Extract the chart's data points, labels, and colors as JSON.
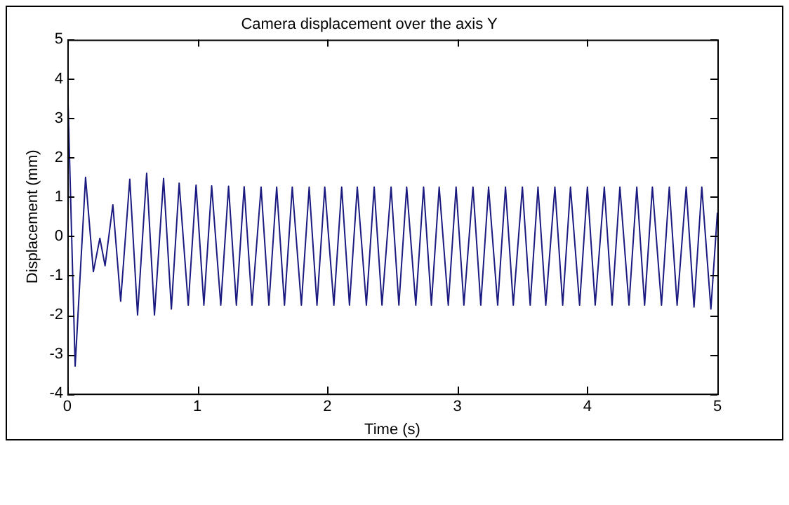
{
  "chart_data": {
    "type": "line",
    "title": "Camera displacement over the axis Y",
    "xlabel": "Time (s)",
    "ylabel": "Displacement (mm)",
    "xlim": [
      0,
      5
    ],
    "ylim": [
      -4,
      5
    ],
    "xticks": [
      0,
      1,
      2,
      3,
      4,
      5
    ],
    "yticks": [
      -4,
      -3,
      -2,
      -1,
      0,
      1,
      2,
      3,
      4,
      5
    ],
    "grid": false,
    "legend": false,
    "marker": "none",
    "line_style": "solid",
    "series": [
      {
        "color": "#1a1a80",
        "x": [
          0,
          0.06,
          0.14,
          0.2,
          0.25,
          0.29,
          0.35,
          0.41,
          0.48,
          0.54,
          0.61,
          0.67,
          0.74,
          0.8,
          0.86,
          0.93,
          0.99,
          1.05,
          1.11,
          1.18,
          1.24,
          1.3,
          1.36,
          1.42,
          1.49,
          1.55,
          1.61,
          1.67,
          1.73,
          1.8,
          1.86,
          1.92,
          1.98,
          2.05,
          2.11,
          2.17,
          2.23,
          2.3,
          2.36,
          2.42,
          2.49,
          2.55,
          2.61,
          2.68,
          2.74,
          2.8,
          2.86,
          2.93,
          2.99,
          3.05,
          3.12,
          3.18,
          3.24,
          3.31,
          3.37,
          3.43,
          3.5,
          3.56,
          3.62,
          3.68,
          3.75,
          3.81,
          3.87,
          3.94,
          4,
          4.06,
          4.13,
          4.19,
          4.25,
          4.32,
          4.38,
          4.44,
          4.5,
          4.57,
          4.63,
          4.69,
          4.76,
          4.82,
          4.88,
          4.95,
          5
        ],
        "values": [
          4.05,
          -3.3,
          1.5,
          -0.9,
          -0.05,
          -0.75,
          0.8,
          -1.65,
          1.45,
          -2,
          1.6,
          -2,
          1.47,
          -1.85,
          1.35,
          -1.75,
          1.3,
          -1.75,
          1.28,
          -1.75,
          1.27,
          -1.75,
          1.26,
          -1.75,
          1.25,
          -1.75,
          1.25,
          -1.75,
          1.25,
          -1.75,
          1.25,
          -1.75,
          1.25,
          -1.75,
          1.25,
          -1.75,
          1.25,
          -1.75,
          1.25,
          -1.75,
          1.25,
          -1.75,
          1.25,
          -1.75,
          1.25,
          -1.75,
          1.25,
          -1.75,
          1.25,
          -1.75,
          1.25,
          -1.75,
          1.25,
          -1.75,
          1.25,
          -1.75,
          1.25,
          -1.75,
          1.25,
          -1.75,
          1.25,
          -1.75,
          1.25,
          -1.75,
          1.25,
          -1.75,
          1.25,
          -1.75,
          1.25,
          -1.75,
          1.25,
          -1.75,
          1.25,
          -1.75,
          1.25,
          -1.75,
          1.25,
          -1.8,
          1.25,
          -1.85,
          0.6
        ]
      }
    ]
  }
}
